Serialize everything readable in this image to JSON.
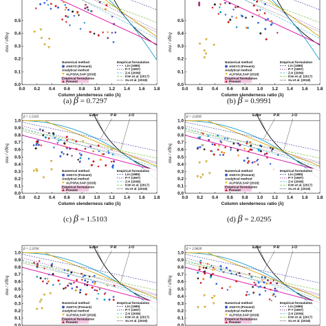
{
  "chart_data": [
    {
      "type": "scatter",
      "panel": "a",
      "caption_letter": "(a)",
      "caption_symbol": "β",
      "caption_eq": "=",
      "caption_value": "0.7297",
      "beta_label": "",
      "ylabel": "σxu / σYeq",
      "xlabel": "Column slenderness ratio (λ)",
      "xlim": [
        0.0,
        1.8
      ],
      "ylim": [
        0.0,
        1.1
      ],
      "xticks": [
        "0.0",
        "0.2",
        "0.4",
        "0.6",
        "0.8",
        "1.0",
        "1.2",
        "1.4",
        "1.6",
        "1.8"
      ],
      "yticks": [
        "0.0",
        "0.1",
        "0.2",
        "0.3",
        "0.4",
        "0.5"
      ],
      "curve_labels": {
        "euler": "",
        "pr": "",
        "jo": ""
      },
      "scatter_cloud": {
        "center_x": 0.8,
        "center_y": 0.55
      },
      "legend": true
    },
    {
      "type": "scatter",
      "panel": "b",
      "caption_letter": "(b)",
      "caption_symbol": "β",
      "caption_eq": "=",
      "caption_value": "0.9991",
      "beta_label": "",
      "ylabel": "σxu / σYeq",
      "xlabel": "Column slenderness ratio (λ)",
      "xlim": [
        0.0,
        1.8
      ],
      "ylim": [
        0.0,
        1.1
      ],
      "xticks": [
        "0.0",
        "0.2",
        "0.4",
        "0.6",
        "0.8",
        "1.0",
        "1.2",
        "1.4",
        "1.6",
        "1.8"
      ],
      "yticks": [
        "0.0",
        "0.1",
        "0.2",
        "0.3",
        "0.4",
        "0.5"
      ],
      "curve_labels": {
        "euler": "",
        "pr": "",
        "jo": ""
      },
      "scatter_cloud": {
        "center_x": 0.8,
        "center_y": 0.55
      },
      "legend": true
    },
    {
      "type": "scatter",
      "panel": "c",
      "caption_letter": "(c)",
      "caption_symbol": "β",
      "caption_eq": "=",
      "caption_value": "1.5103",
      "beta_label": "β = 1.5103",
      "ylabel": "σxu / σYeq",
      "xlabel": "Column slenderness ratio (λ)",
      "xlim": [
        0.0,
        1.8
      ],
      "ylim": [
        0.0,
        1.1
      ],
      "xticks": [
        "0.0",
        "0.2",
        "0.4",
        "0.6",
        "0.8",
        "1.0",
        "1.2",
        "1.4",
        "1.6",
        "1.8"
      ],
      "yticks": [
        "0.0",
        "0.1",
        "0.2",
        "0.3",
        "0.4",
        "0.5",
        "0.6",
        "0.7",
        "0.8",
        "0.9",
        "1.0"
      ],
      "curve_labels": {
        "euler": "Euler",
        "pr": "P-R",
        "jo": "J-O"
      },
      "scatter_cloud": {
        "center_x": 0.8,
        "center_y": 0.55
      },
      "legend": true
    },
    {
      "type": "scatter",
      "panel": "d",
      "caption_letter": "(d)",
      "caption_symbol": "β",
      "caption_eq": "=",
      "caption_value": "2.0295",
      "beta_label": "β = 2.0295",
      "ylabel": "σxu / σYeq",
      "xlabel": "Column slenderness ratio (λ)",
      "xlim": [
        0.0,
        1.8
      ],
      "ylim": [
        0.0,
        1.1
      ],
      "xticks": [
        "0.0",
        "0.2",
        "0.4",
        "0.6",
        "0.8",
        "1.0",
        "1.2",
        "1.4",
        "1.6",
        "1.8"
      ],
      "yticks": [
        "0.0",
        "0.1",
        "0.2",
        "0.3",
        "0.4",
        "0.5",
        "0.6",
        "0.7",
        "0.8",
        "0.9",
        "1.0"
      ],
      "curve_labels": {
        "euler": "Euler",
        "pr": "P-R",
        "jo": "J-O"
      },
      "scatter_cloud": {
        "center_x": 0.8,
        "center_y": 0.55
      },
      "legend": true
    },
    {
      "type": "scatter",
      "panel": "e",
      "caption_letter": "",
      "caption_symbol": "",
      "caption_eq": "",
      "caption_value": "",
      "beta_label": "β = 2.3194",
      "ylabel": "σxu / σYeq",
      "xlabel": "",
      "xlim": [
        0.0,
        1.8
      ],
      "ylim": [
        0.0,
        1.1
      ],
      "xticks": [],
      "yticks": [
        "0.0",
        "0.1",
        "0.2",
        "0.3",
        "0.4",
        "0.5",
        "0.6",
        "0.7",
        "0.8",
        "0.9",
        "1.0"
      ],
      "curve_labels": {
        "euler": "Euler",
        "pr": "P-R",
        "jo": "J-O"
      },
      "scatter_cloud": {
        "center_x": 0.8,
        "center_y": 0.55
      },
      "legend": true
    },
    {
      "type": "scatter",
      "panel": "f",
      "caption_letter": "",
      "caption_symbol": "",
      "caption_eq": "",
      "caption_value": "",
      "beta_label": "β = 2.9620",
      "ylabel": "σxu / σYeq",
      "xlabel": "",
      "xlim": [
        0.0,
        1.8
      ],
      "ylim": [
        0.0,
        1.1
      ],
      "xticks": [],
      "yticks": [
        "0.0",
        "0.1",
        "0.2",
        "0.3",
        "0.4",
        "0.5",
        "0.6",
        "0.7",
        "0.8",
        "0.9",
        "1.0"
      ],
      "curve_labels": {
        "euler": "Euler",
        "pr": "P-R",
        "jo": "J-O"
      },
      "scatter_cloud": {
        "center_x": 0.8,
        "center_y": 0.55
      },
      "legend": true
    }
  ],
  "legend": {
    "numerical_header": "Numerical method",
    "ansys": "ANSYS (Present)",
    "analytical_header": "Analytical method",
    "alps": "ALPS/ULSAP (2016)",
    "empirical_box": "Empirical formulation",
    "present": "Present",
    "empirical_header": "Empirical formulation",
    "lin": "Lin (1985)",
    "pt": "P-T (1997)",
    "zk": "Z-K (2009)",
    "kim": "Kim et al. (2017)",
    "xu": "Xu et al. (2018)"
  },
  "colors": {
    "euler": "#000000",
    "pr": "#d4a000",
    "jo": "#1a9cd0",
    "lin": "#2e2e9e",
    "pt": "#7a2a8a",
    "zk": "#3fb3c8",
    "kim": "#7cc242",
    "xu": "#222222",
    "present_line": "#e02cb0",
    "ansys_marker": "#2b5fd9",
    "alps_marker": "#f0c020",
    "present_marker": "#d01818",
    "legend_pink": "#f2c6e0"
  }
}
